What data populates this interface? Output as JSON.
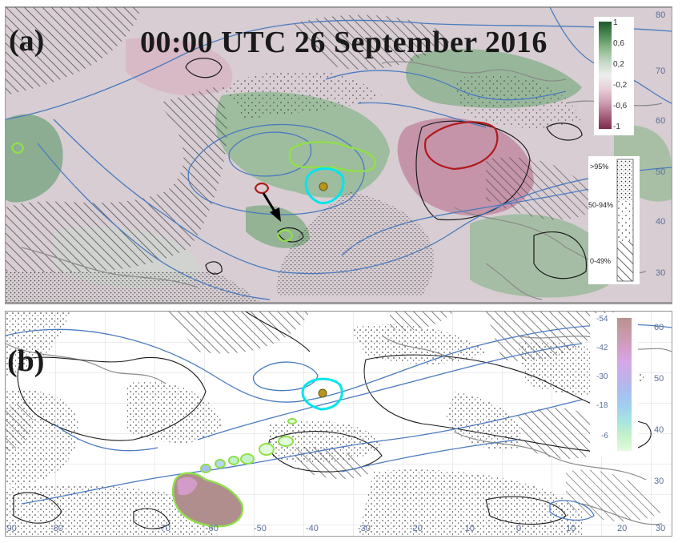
{
  "panel_a": {
    "label": "(a)",
    "title": "00:00 UTC 26 September 2016",
    "lat_ticks": [
      "80",
      "70",
      "60",
      "50",
      "40",
      "30"
    ],
    "colorbar": {
      "labels": [
        "1",
        "0,6",
        "0,2",
        "-0,2",
        "-0,6",
        "-1"
      ],
      "colors": [
        "#1f5a2b",
        "#4d8b55",
        "#8cb88d",
        "#c4d8c4",
        "#eeeeee",
        "#e7cfd8",
        "#cfa0b4",
        "#a7647f",
        "#7a2b4c"
      ]
    },
    "stipple_legend": {
      "items": [
        {
          "label": ">95%",
          "pattern": "dense-dots"
        },
        {
          "label": "50-94%",
          "pattern": "sparse-dots"
        },
        {
          "label": "0-49%",
          "pattern": "hatch"
        }
      ]
    }
  },
  "panel_b": {
    "label": "(b)",
    "lat_ticks": [
      "60",
      "50",
      "40",
      "30"
    ],
    "lon_ticks": [
      "-90",
      "-80",
      "-70",
      "-60",
      "-50",
      "-40",
      "-30",
      "-20",
      "-10",
      "0",
      "10",
      "20",
      "30"
    ],
    "colorbar": {
      "labels": [
        "-54",
        "-42",
        "-30",
        "-18",
        "-6"
      ],
      "colors": [
        "#b89090",
        "#c79aa8",
        "#d39cc8",
        "#d6a8e6",
        "#c0b0ea",
        "#a8bff0",
        "#9fd0ef",
        "#a8e4e0",
        "#c4f2c8",
        "#e2fadd"
      ]
    }
  },
  "colors": {
    "positive_anomaly_contour": "#8fe04a",
    "negative_anomaly_contour": "#b11a1a",
    "cyclone_track": "#00e5ee",
    "cyclone_center": "#b8951f",
    "streamlines": "#4a7bc0",
    "coastline": "#8a8a8a"
  }
}
